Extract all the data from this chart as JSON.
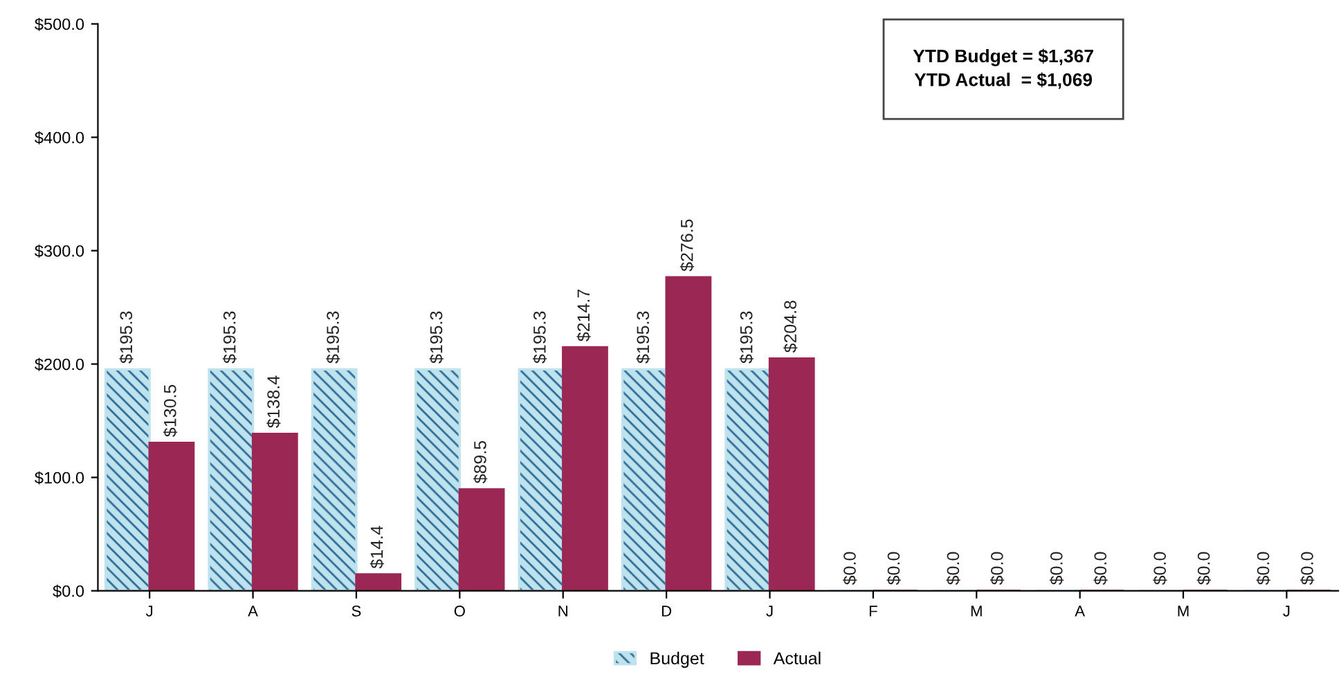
{
  "chart_data": {
    "type": "bar",
    "categories": [
      "J",
      "A",
      "S",
      "O",
      "N",
      "D",
      "J",
      "F",
      "M",
      "A",
      "M",
      "J"
    ],
    "series": [
      {
        "name": "Budget",
        "color": "#bfe2ef",
        "values": [
          195.3,
          195.3,
          195.3,
          195.3,
          195.3,
          195.3,
          195.3,
          0.0,
          0.0,
          0.0,
          0.0,
          0.0
        ],
        "value_labels": [
          "$195.3",
          "$195.3",
          "$195.3",
          "$195.3",
          "$195.3",
          "$195.3",
          "$195.3",
          "$0.0",
          "$0.0",
          "$0.0",
          "$0.0",
          "$0.0"
        ]
      },
      {
        "name": "Actual",
        "color": "#9b2755",
        "values": [
          130.5,
          138.4,
          14.4,
          89.5,
          214.7,
          276.5,
          204.8,
          0.0,
          0.0,
          0.0,
          0.0,
          0.0
        ],
        "value_labels": [
          "$130.5",
          "$138.4",
          "$14.4",
          "$89.5",
          "$214.7",
          "$276.5",
          "$204.8",
          "$0.0",
          "$0.0",
          "$0.0",
          "$0.0",
          "$0.0"
        ]
      }
    ],
    "ylim": [
      0,
      500
    ],
    "yticks": [
      {
        "value": 0,
        "label": "$0.0"
      },
      {
        "value": 100,
        "label": "$100.0"
      },
      {
        "value": 200,
        "label": "$200.0"
      },
      {
        "value": 300,
        "label": "$300.0"
      },
      {
        "value": 400,
        "label": "$400.0"
      },
      {
        "value": 500,
        "label": "$500.0"
      }
    ],
    "annotations": [
      "YTD Budget = $1,367",
      "YTD Actual  = $1,069"
    ],
    "legend": "bottom",
    "grid": false
  }
}
